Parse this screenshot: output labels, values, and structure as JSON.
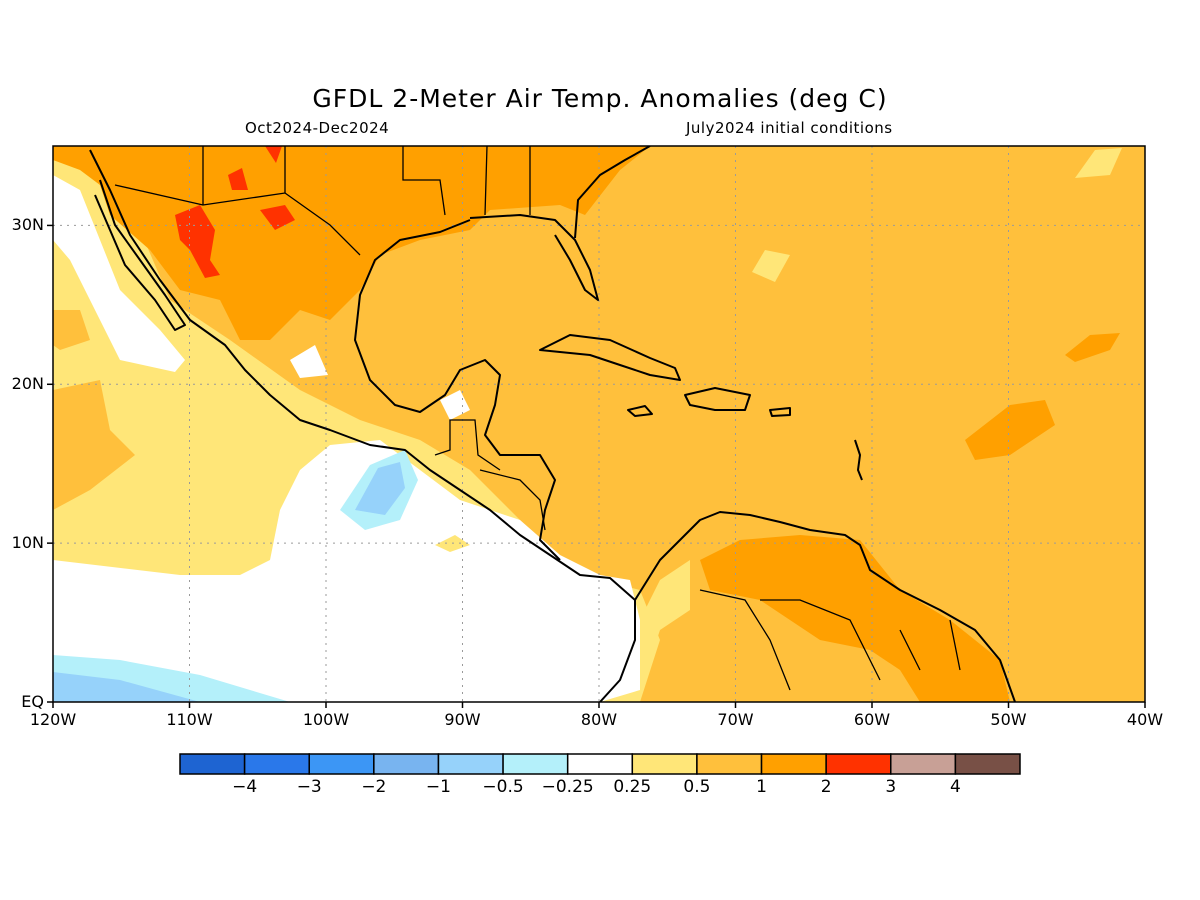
{
  "title": "GFDL 2-Meter Air Temp. Anomalies (deg C)",
  "subtitle_left": "Oct2024-Dec2024",
  "subtitle_right": "July2024 initial conditions",
  "map": {
    "lat_range": [
      0,
      35
    ],
    "lon_range": [
      -120,
      -40
    ],
    "lat_ticks": [
      {
        "value": 30,
        "label": "30N"
      },
      {
        "value": 20,
        "label": "20N"
      },
      {
        "value": 10,
        "label": "10N"
      },
      {
        "value": 0,
        "label": "EQ"
      }
    ],
    "lon_ticks": [
      {
        "value": -120,
        "label": "120W"
      },
      {
        "value": -110,
        "label": "110W"
      },
      {
        "value": -100,
        "label": "100W"
      },
      {
        "value": -90,
        "label": "90W"
      },
      {
        "value": -80,
        "label": "80W"
      },
      {
        "value": -70,
        "label": "70W"
      },
      {
        "value": -60,
        "label": "60W"
      },
      {
        "value": -50,
        "label": "50W"
      },
      {
        "value": -40,
        "label": "40W"
      }
    ],
    "grid": "dotted"
  },
  "colorbar": {
    "colors": [
      "#1e64d2",
      "#2a78ea",
      "#3c96f5",
      "#78b4f0",
      "#96d2fa",
      "#b4f0fa",
      "#ffffff",
      "#ffe678",
      "#ffc03c",
      "#ffa000",
      "#ff3200",
      "#c8a096",
      "#785046"
    ],
    "labels": [
      "−4",
      "−3",
      "−2",
      "−1",
      "−0.5",
      "−0.25",
      "0.25",
      "0.5",
      "1",
      "2",
      "3",
      "4"
    ]
  },
  "colors": {
    "very_warm": "#ff3200",
    "warm": "#ffa000",
    "moderate": "#ffc03c",
    "slight": "#ffe678",
    "neutral": "#ffffff",
    "slight_cool": "#b4f0fa",
    "cool": "#96d2fa",
    "coast": "#000000"
  }
}
